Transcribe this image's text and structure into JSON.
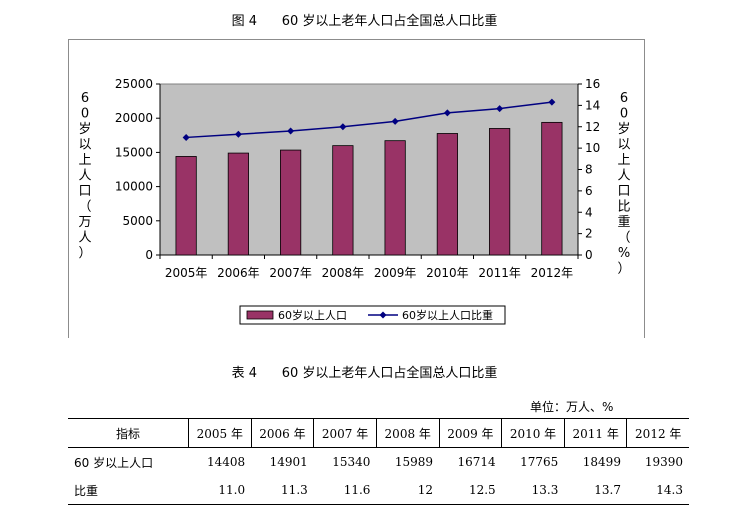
{
  "figure_title": "图 4      60 岁以上老年人口占全国总人口比重",
  "table_title": "表 4      60 岁以上老年人口占全国总人口比重",
  "unit_label": "单位：万人、%",
  "chart_data": {
    "type": "bar",
    "categories": [
      "2005年",
      "2006年",
      "2007年",
      "2008年",
      "2009年",
      "2010年",
      "2011年",
      "2012年"
    ],
    "series": [
      {
        "name": "60岁以上人口",
        "type": "bar",
        "axis": "left",
        "color": "#993366",
        "values": [
          14408,
          14901,
          15340,
          15989,
          16714,
          17765,
          18499,
          19390
        ]
      },
      {
        "name": "60岁以上人口比重",
        "type": "line",
        "axis": "right",
        "color": "#000080",
        "values": [
          11.0,
          11.3,
          11.6,
          12.0,
          12.5,
          13.3,
          13.7,
          14.3
        ]
      }
    ],
    "ylabel": "60岁以上人口（万人）",
    "y2label": "60岁以上人口比重（%）",
    "ylim": [
      0,
      25000
    ],
    "yticks": [
      "0",
      "5000",
      "10000",
      "15000",
      "20000",
      "25000"
    ],
    "y2lim": [
      0,
      16
    ],
    "y2ticks": [
      "0",
      "2",
      "4",
      "6",
      "8",
      "10",
      "12",
      "14",
      "16"
    ],
    "grid": false,
    "legend": "bottom",
    "plot_background": "#c0c0c0"
  },
  "table": {
    "headers": [
      "指标",
      "2005 年",
      "2006 年",
      "2007 年",
      "2008 年",
      "2009 年",
      "2010 年",
      "2011 年",
      "2012 年"
    ],
    "rows": [
      {
        "label": "60 岁以上人口",
        "values": [
          "14408",
          "14901",
          "15340",
          "15989",
          "16714",
          "17765",
          "18499",
          "19390"
        ]
      },
      {
        "label": "比重",
        "values": [
          "11.0",
          "11.3",
          "11.6",
          "12",
          "12.5",
          "13.3",
          "13.7",
          "14.3"
        ]
      }
    ]
  }
}
